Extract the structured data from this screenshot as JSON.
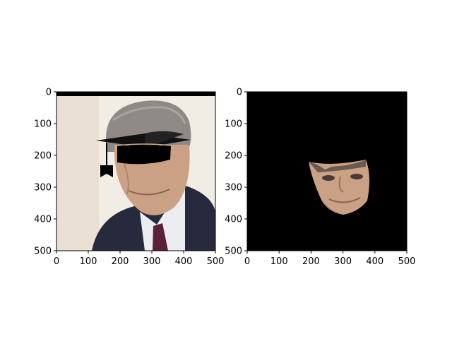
{
  "chart_data": [
    {
      "type": "image",
      "content": "portrait photo of a man in a suit with a graduation cap overlay",
      "xlim": [
        0,
        500
      ],
      "ylim": [
        500,
        0
      ],
      "xticks": [
        0,
        100,
        200,
        300,
        400,
        500
      ],
      "yticks": [
        0,
        100,
        200,
        300,
        400,
        500
      ],
      "xlabel": "",
      "ylabel": ""
    },
    {
      "type": "image",
      "content": "masked face region on black background",
      "xlim": [
        0,
        500
      ],
      "ylim": [
        500,
        0
      ],
      "xticks": [
        0,
        100,
        200,
        300,
        400,
        500
      ],
      "yticks": [
        0,
        100,
        200,
        300,
        400,
        500
      ],
      "xlabel": "",
      "ylabel": ""
    }
  ],
  "colors": {
    "background": "#ffffff",
    "mask": "#000000",
    "photo_bg": "#f1ece4",
    "suit": "#272a3d",
    "shirt": "#ecedf1",
    "tie": "#5a2138",
    "skin": "#caa185",
    "hair": "#8f8a85"
  }
}
